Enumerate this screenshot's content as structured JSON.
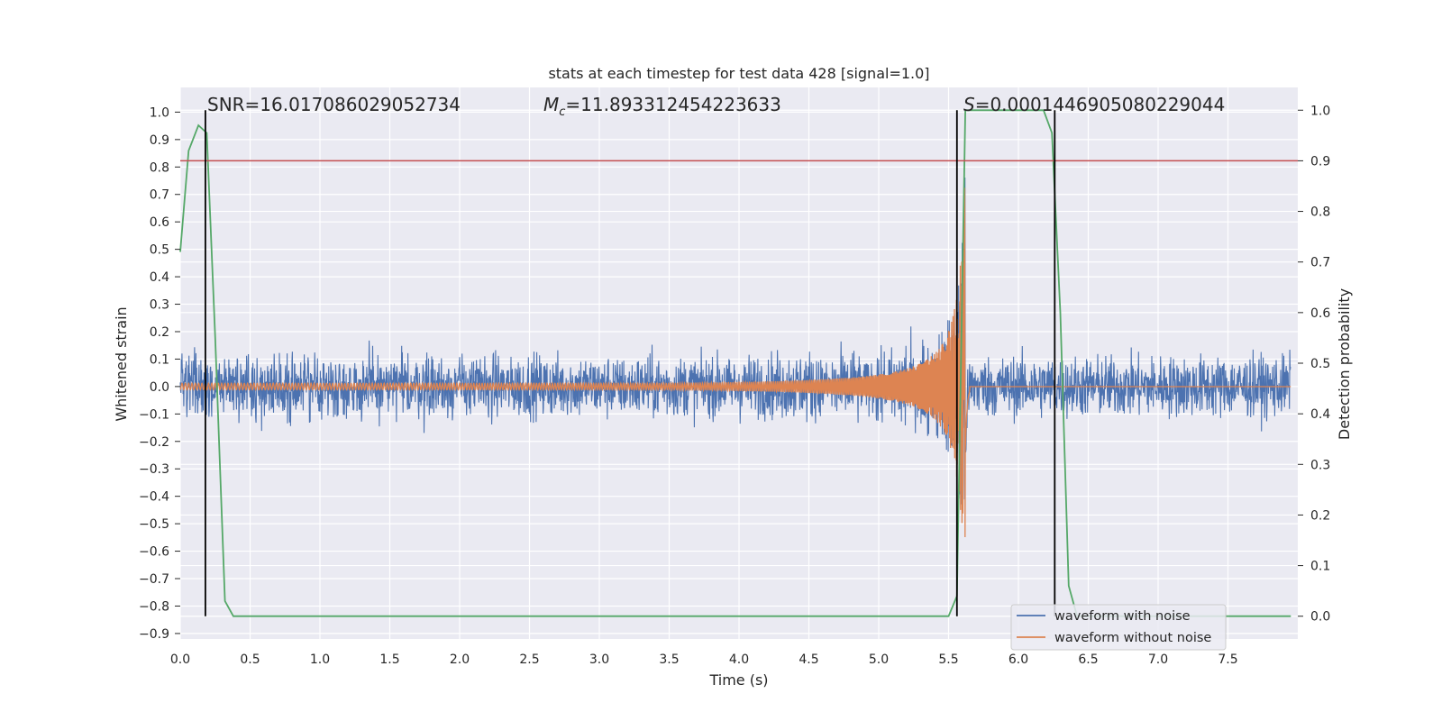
{
  "chart_data": {
    "type": "line",
    "title": "stats at each timestep for test data 428 [signal=1.0]",
    "xlabel": "Time (s)",
    "ylabel_left": "Whitened strain",
    "ylabel_right": "Detection probability",
    "xlim": [
      0.0,
      8.0
    ],
    "ylim_left": [
      -0.92,
      1.09
    ],
    "ylim_right": [
      -0.045,
      1.045
    ],
    "x_ticks": [
      "0.0",
      "0.5",
      "1.0",
      "1.5",
      "2.0",
      "2.5",
      "3.0",
      "3.5",
      "4.0",
      "4.5",
      "5.0",
      "5.5",
      "6.0",
      "6.5",
      "7.0",
      "7.5"
    ],
    "y_ticks_left": [
      "1.0",
      "0.9",
      "0.8",
      "0.7",
      "0.6",
      "0.5",
      "0.4",
      "0.3",
      "0.2",
      "0.1",
      "0.0",
      "−0.1",
      "−0.2",
      "−0.3",
      "−0.4",
      "−0.5",
      "−0.6",
      "−0.7",
      "−0.8",
      "−0.9"
    ],
    "y_ticks_right": [
      "1.0",
      "0.9",
      "0.8",
      "0.7",
      "0.6",
      "0.5",
      "0.4",
      "0.3",
      "0.2",
      "0.1",
      "0.0"
    ],
    "grid": true,
    "annotations": {
      "snr": "SNR=16.017086029052734",
      "mc_symbol": "M",
      "mc_sub": "c",
      "mc_value": "=11.893312454223633",
      "s_symbol": "S",
      "s_value": "=0.0001446905080229044"
    },
    "threshold_right": 0.9,
    "vertical_lines_x": [
      0.18,
      5.56,
      6.26
    ],
    "merger_time": 5.62,
    "series": [
      {
        "name": "waveform with noise",
        "color": "#4c72b0",
        "description_noise_level": 0.1,
        "description_signal_peak": 0.9
      },
      {
        "name": "waveform without noise",
        "color": "#dd8452",
        "description_signal_peak": 0.9
      },
      {
        "color": "#55a868",
        "axis": "right",
        "x": [
          0.0,
          0.06,
          0.13,
          0.19,
          0.25,
          0.32,
          0.38,
          0.45,
          5.5,
          5.56,
          5.62,
          5.68,
          6.18,
          6.24,
          6.3,
          6.36,
          6.42,
          7.95
        ],
        "y": [
          0.72,
          0.92,
          0.97,
          0.955,
          0.55,
          0.03,
          0.0,
          0.0,
          0.0,
          0.04,
          1.0,
          1.0,
          1.0,
          0.955,
          0.6,
          0.06,
          0.0,
          0.0
        ]
      }
    ]
  }
}
